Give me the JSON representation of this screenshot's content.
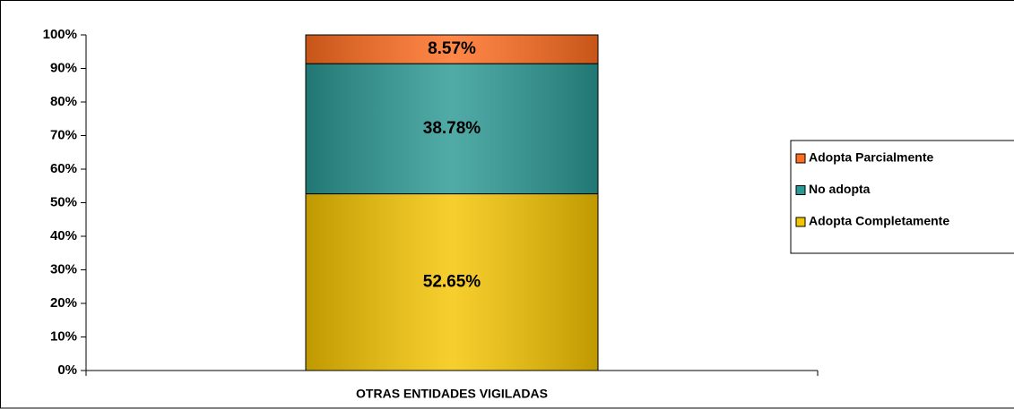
{
  "chart_data": {
    "type": "stacked_bar",
    "categories": [
      "OTRAS ENTIDADES VIGILADAS"
    ],
    "series": [
      {
        "name": "Adopta Completamente",
        "color": "#f5c400",
        "values": [
          52.65
        ],
        "value_labels": [
          "52.65%"
        ]
      },
      {
        "name": "No adopta",
        "color": "#2a9893",
        "values": [
          38.78
        ],
        "value_labels": [
          "38.78%"
        ]
      },
      {
        "name": "Adopta Parcialmente",
        "color": "#ff6d1f",
        "values": [
          8.57
        ],
        "value_labels": [
          "8.57%"
        ]
      }
    ],
    "ylim": [
      0,
      100
    ],
    "yticks": [
      {
        "value": 0,
        "label": "0%"
      },
      {
        "value": 10,
        "label": "10%"
      },
      {
        "value": 20,
        "label": "20%"
      },
      {
        "value": 30,
        "label": "30%"
      },
      {
        "value": 40,
        "label": "40%"
      },
      {
        "value": 50,
        "label": "50%"
      },
      {
        "value": 60,
        "label": "60%"
      },
      {
        "value": 70,
        "label": "70%"
      },
      {
        "value": 80,
        "label": "80%"
      },
      {
        "value": 90,
        "label": "90%"
      },
      {
        "value": 100,
        "label": "100%"
      }
    ],
    "grid": false,
    "legend": "right"
  }
}
